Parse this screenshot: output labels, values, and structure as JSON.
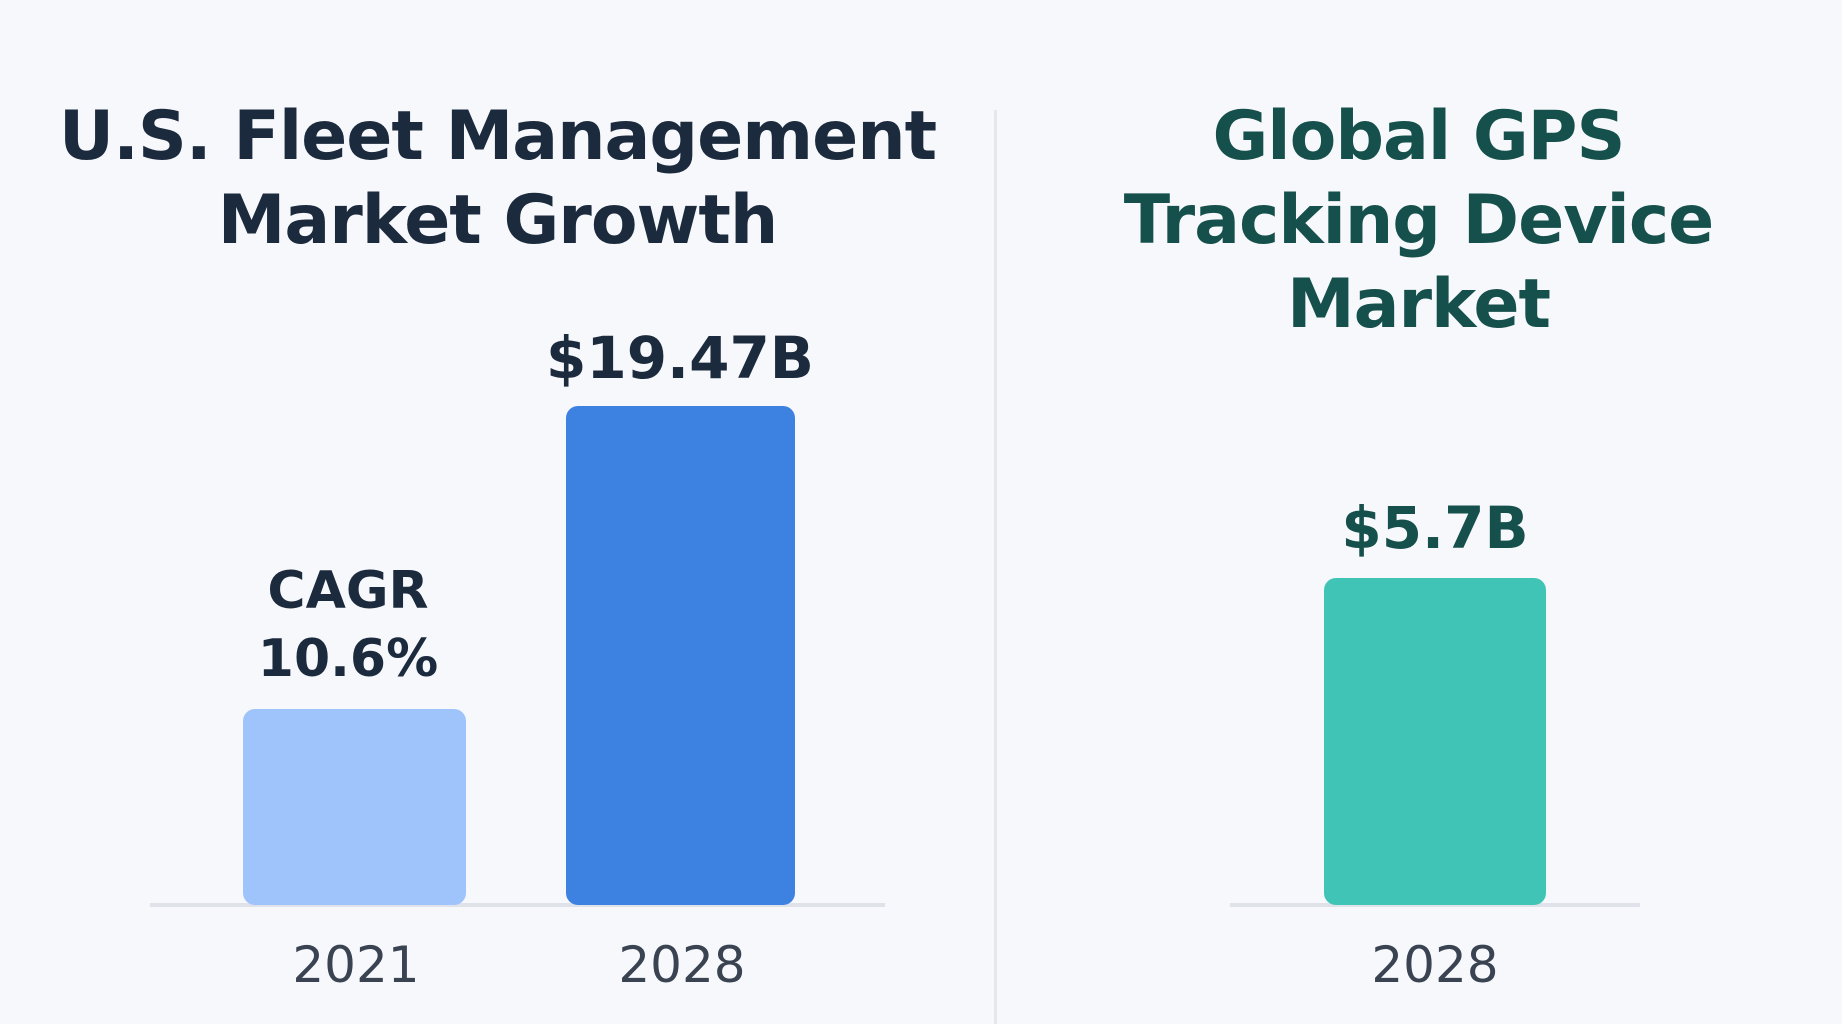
{
  "chart_data": [
    {
      "type": "bar",
      "title_lines": [
        "U.S. Fleet Management",
        "Market Growth"
      ],
      "categories": [
        "2021",
        "2028"
      ],
      "value_labels": [
        "",
        "$19.47B"
      ],
      "values": [
        null,
        19.47
      ],
      "units": "USD billions",
      "annotation_lines": [
        "CAGR",
        "10.6%"
      ],
      "colors": [
        "#9fc3fb",
        "#3d82e0"
      ],
      "xlabel": "",
      "ylabel": ""
    },
    {
      "type": "bar",
      "title_lines": [
        "Global GPS",
        "Tracking Device",
        "Market"
      ],
      "categories": [
        "2028"
      ],
      "value_labels": [
        "$5.7B"
      ],
      "values": [
        5.7
      ],
      "units": "USD billions",
      "colors": [
        "#40c4b5"
      ],
      "xlabel": "",
      "ylabel": ""
    }
  ]
}
